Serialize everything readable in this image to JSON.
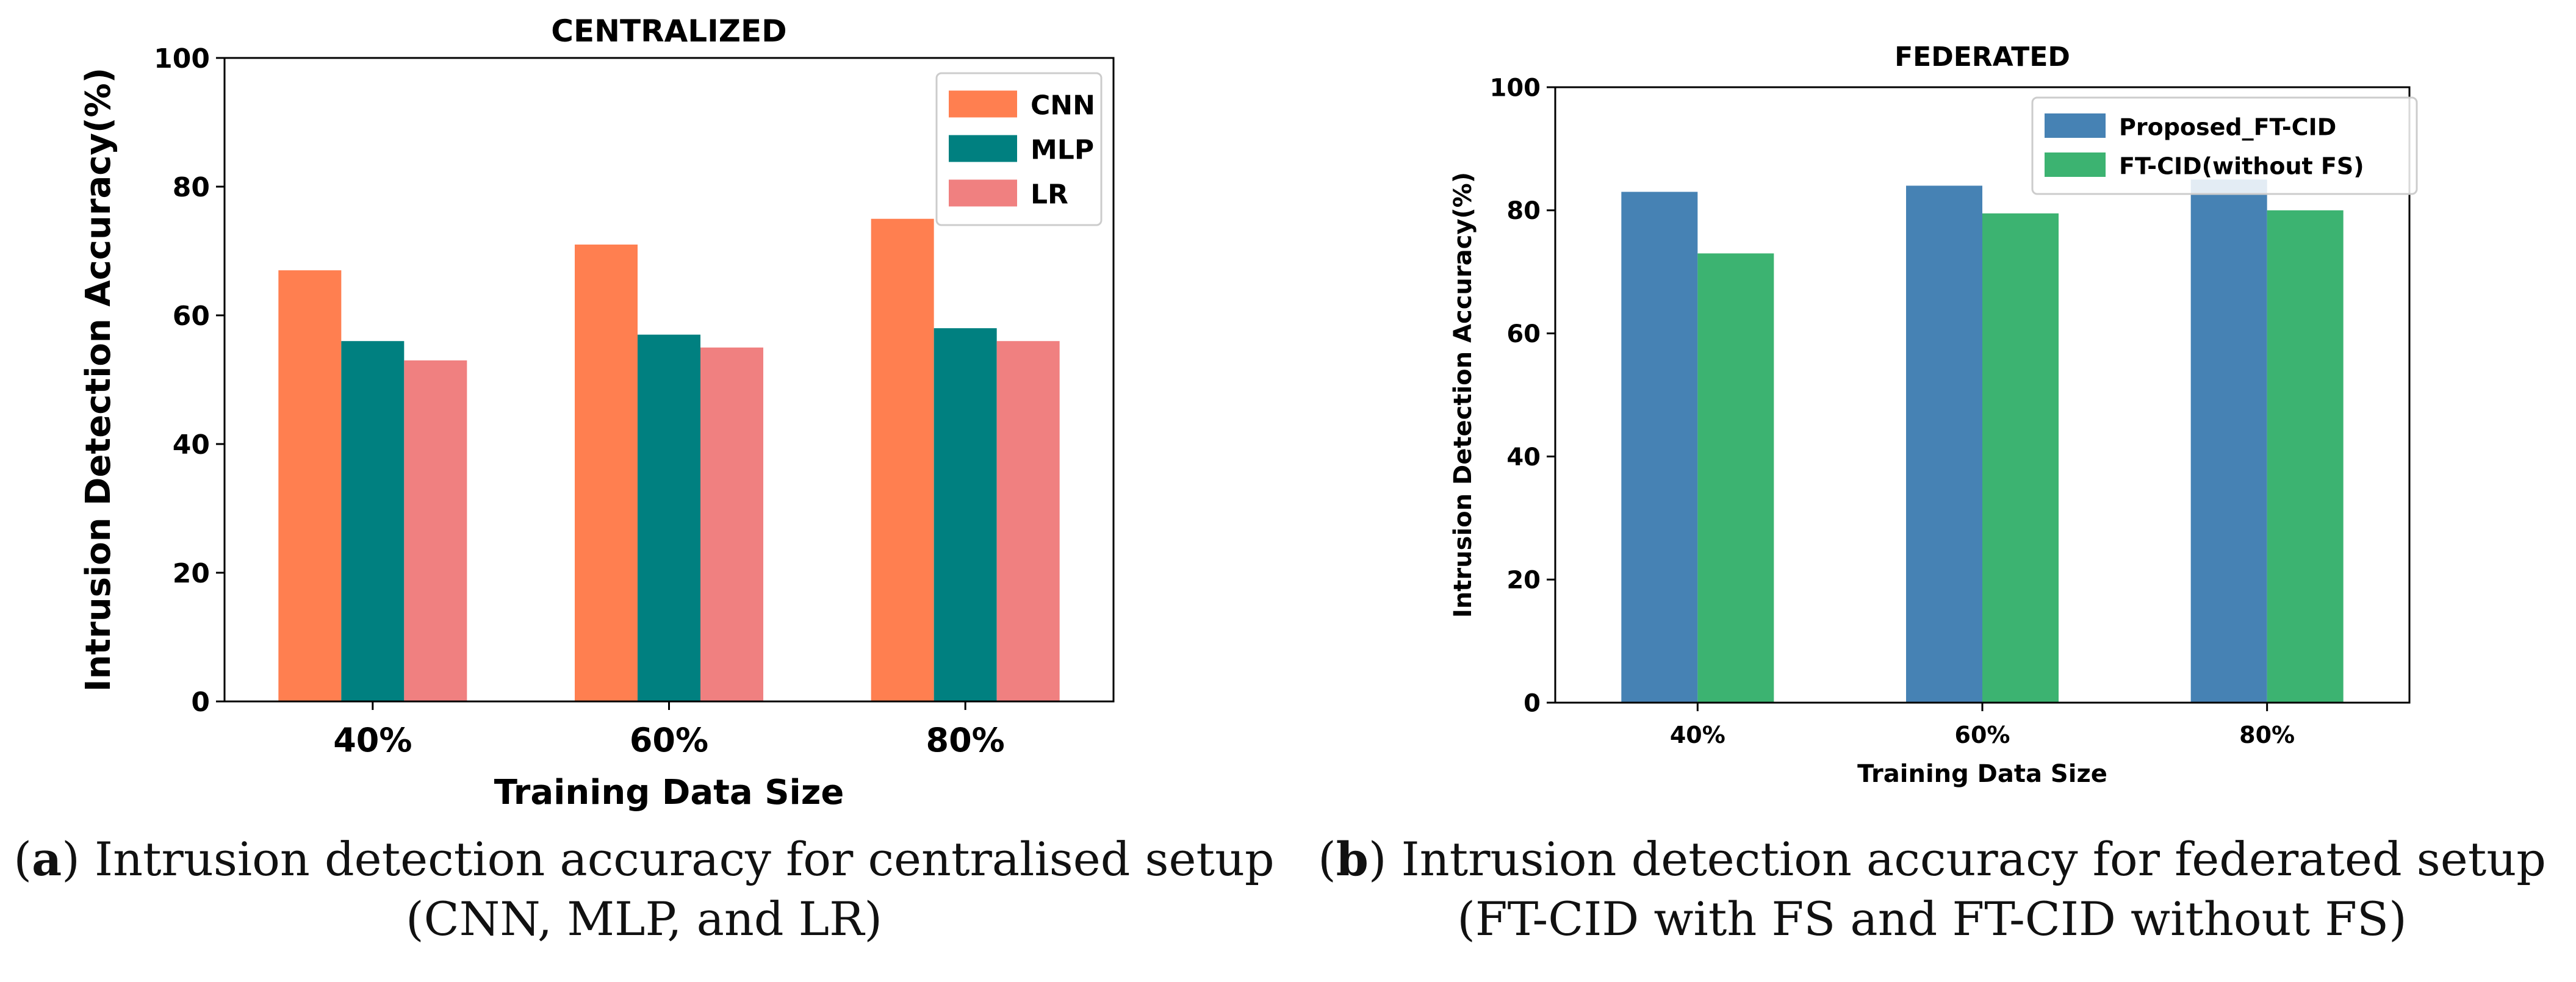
{
  "figure": {
    "panels": [
      {
        "caption_tag": "a",
        "caption_text": " Intrusion detection accuracy for centralised setup (CNN, MLP, and LR)"
      },
      {
        "caption_tag": "b",
        "caption_text": " Intrusion detection accuracy for federated setup (FT-CID with FS and FT-CID without FS)"
      }
    ]
  },
  "chart_data": [
    {
      "type": "bar",
      "title": "CENTRALIZED",
      "xlabel": "Training Data Size",
      "ylabel": "Intrusion Detection Accuracy(%)",
      "categories": [
        "40%",
        "60%",
        "80%"
      ],
      "ylim": [
        0,
        100
      ],
      "yticks": [
        "0",
        "20",
        "40",
        "60",
        "80",
        "100"
      ],
      "grid": false,
      "legend_position": "top-right",
      "series": [
        {
          "name": "CNN",
          "values": [
            67,
            71,
            75
          ],
          "color": "#ff7f50"
        },
        {
          "name": "MLP",
          "values": [
            56,
            57,
            58
          ],
          "color": "#008080"
        },
        {
          "name": "LR",
          "values": [
            53,
            55,
            56
          ],
          "color": "#f08080"
        }
      ]
    },
    {
      "type": "bar",
      "title": "FEDERATED",
      "xlabel": "Training Data Size",
      "ylabel": "Intrusion Detection Accuracy(%)",
      "categories": [
        "40%",
        "60%",
        "80%"
      ],
      "ylim": [
        0,
        100
      ],
      "yticks": [
        "0",
        "20",
        "40",
        "60",
        "80",
        "100"
      ],
      "grid": false,
      "legend_position": "top-right",
      "series": [
        {
          "name": "Proposed_FT-CID",
          "values": [
            83,
            84,
            85
          ],
          "color": "#4682b4"
        },
        {
          "name": "FT-CID(without FS)",
          "values": [
            73,
            79.5,
            80
          ],
          "color": "#3cb371"
        }
      ]
    }
  ]
}
